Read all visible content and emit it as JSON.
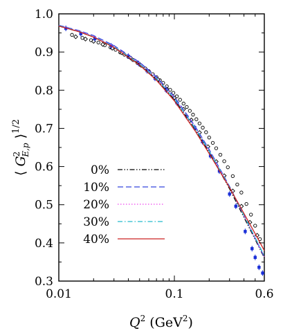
{
  "chart_data": {
    "type": "line",
    "xlabel": "Q² (GeV²)",
    "ylabel": "⟨ G²E,p ⟩1/2",
    "x_scale": "log",
    "xlim": [
      0.01,
      0.6
    ],
    "ylim": [
      0.3,
      1.0
    ],
    "x_ticks": [
      {
        "value": 0.01,
        "label": "0.01"
      },
      {
        "value": 0.1,
        "label": "0.1"
      },
      {
        "value": 0.6,
        "label": "0.6"
      }
    ],
    "y_ticks": [
      {
        "value": 0.3,
        "label": "0.3"
      },
      {
        "value": 0.4,
        "label": "0.4"
      },
      {
        "value": 0.5,
        "label": "0.5"
      },
      {
        "value": 0.6,
        "label": "0.6"
      },
      {
        "value": 0.7,
        "label": "0.7"
      },
      {
        "value": 0.8,
        "label": "0.8"
      },
      {
        "value": 0.9,
        "label": "0.9"
      },
      {
        "value": 1.0,
        "label": "1.0"
      }
    ],
    "grid": false,
    "legend_position": "lower-left",
    "series": [
      {
        "name": "0%",
        "color": "#000000",
        "dash": "dashdotdot",
        "x": [
          0.01,
          0.015,
          0.02,
          0.03,
          0.05,
          0.07,
          0.1,
          0.15,
          0.2,
          0.3,
          0.4,
          0.5,
          0.6
        ],
        "y": [
          0.968,
          0.953,
          0.939,
          0.913,
          0.868,
          0.829,
          0.776,
          0.7,
          0.638,
          0.542,
          0.467,
          0.409,
          0.361
        ]
      },
      {
        "name": "10%",
        "color": "#3344dd",
        "dash": "dash",
        "x": [
          0.01,
          0.015,
          0.02,
          0.03,
          0.05,
          0.07,
          0.1,
          0.15,
          0.2,
          0.3,
          0.4,
          0.5,
          0.6
        ],
        "y": [
          0.97,
          0.956,
          0.943,
          0.917,
          0.873,
          0.835,
          0.783,
          0.707,
          0.645,
          0.548,
          0.472,
          0.412,
          0.363
        ]
      },
      {
        "name": "20%",
        "color": "#ee44ee",
        "dash": "dot",
        "x": [
          0.01,
          0.015,
          0.02,
          0.03,
          0.05,
          0.07,
          0.1,
          0.15,
          0.2,
          0.3,
          0.4,
          0.5,
          0.6
        ],
        "y": [
          0.969,
          0.955,
          0.941,
          0.915,
          0.871,
          0.832,
          0.78,
          0.704,
          0.642,
          0.546,
          0.471,
          0.412,
          0.364
        ]
      },
      {
        "name": "30%",
        "color": "#22bbcc",
        "dash": "dashdot",
        "x": [
          0.01,
          0.015,
          0.02,
          0.03,
          0.05,
          0.07,
          0.1,
          0.15,
          0.2,
          0.3,
          0.4,
          0.5,
          0.6
        ],
        "y": [
          0.969,
          0.954,
          0.94,
          0.914,
          0.869,
          0.83,
          0.778,
          0.702,
          0.641,
          0.546,
          0.472,
          0.414,
          0.366
        ]
      },
      {
        "name": "40%",
        "color": "#cc2222",
        "dash": "solid",
        "x": [
          0.01,
          0.015,
          0.02,
          0.03,
          0.05,
          0.07,
          0.1,
          0.15,
          0.2,
          0.3,
          0.4,
          0.5,
          0.6
        ],
        "y": [
          0.968,
          0.953,
          0.939,
          0.912,
          0.866,
          0.826,
          0.772,
          0.695,
          0.634,
          0.545,
          0.477,
          0.424,
          0.38
        ]
      }
    ],
    "data_points": [
      {
        "name": "open circles",
        "marker": "circle",
        "color": "#000000",
        "x": [
          0.013,
          0.016,
          0.019,
          0.022,
          0.025,
          0.028,
          0.031,
          0.034,
          0.037,
          0.04,
          0.044,
          0.048,
          0.052,
          0.056,
          0.06,
          0.065,
          0.07,
          0.075,
          0.08,
          0.086,
          0.092,
          0.098,
          0.105,
          0.112,
          0.12,
          0.128,
          0.136,
          0.145,
          0.155,
          0.165,
          0.176,
          0.188,
          0.2,
          0.215,
          0.23,
          0.25,
          0.27,
          0.29,
          0.32,
          0.35,
          0.38,
          0.42,
          0.46,
          0.5,
          0.55
        ],
        "y": [
          0.945,
          0.937,
          0.931,
          0.925,
          0.918,
          0.912,
          0.906,
          0.899,
          0.893,
          0.887,
          0.879,
          0.871,
          0.864,
          0.857,
          0.85,
          0.842,
          0.834,
          0.826,
          0.819,
          0.81,
          0.801,
          0.793,
          0.784,
          0.775,
          0.765,
          0.756,
          0.746,
          0.736,
          0.724,
          0.713,
          0.702,
          0.69,
          0.676,
          0.662,
          0.648,
          0.631,
          0.614,
          0.598,
          0.575,
          0.553,
          0.532,
          0.502,
          0.474,
          0.445,
          0.41
        ]
      },
      {
        "name": "open diamonds",
        "marker": "diamond",
        "color": "#000000",
        "x": [
          0.014,
          0.017,
          0.02,
          0.024,
          0.029,
          0.035,
          0.042,
          0.05,
          0.06,
          0.072,
          0.086,
          0.1,
          0.12,
          0.14,
          0.165,
          0.195,
          0.23,
          0.27,
          0.32,
          0.38,
          0.45,
          0.52
        ],
        "y": [
          0.94,
          0.934,
          0.928,
          0.92,
          0.91,
          0.898,
          0.884,
          0.868,
          0.849,
          0.828,
          0.803,
          0.78,
          0.75,
          0.722,
          0.689,
          0.652,
          0.613,
          0.576,
          0.536,
          0.496,
          0.454,
          0.42
        ]
      },
      {
        "name": "filled blue points",
        "marker": "filled-square",
        "color": "#1a2fd8",
        "x": [
          0.0115,
          0.0155,
          0.0205,
          0.0285,
          0.04,
          0.049,
          0.058,
          0.068,
          0.085,
          0.105,
          0.128,
          0.15,
          0.175,
          0.205,
          0.245,
          0.3,
          0.34,
          0.41,
          0.47,
          0.5,
          0.54,
          0.58
        ],
        "y": [
          0.962,
          0.948,
          0.935,
          0.916,
          0.889,
          0.87,
          0.851,
          0.831,
          0.8,
          0.767,
          0.731,
          0.702,
          0.665,
          0.628,
          0.588,
          0.528,
          0.496,
          0.43,
          0.385,
          0.362,
          0.336,
          0.321
        ]
      }
    ]
  }
}
